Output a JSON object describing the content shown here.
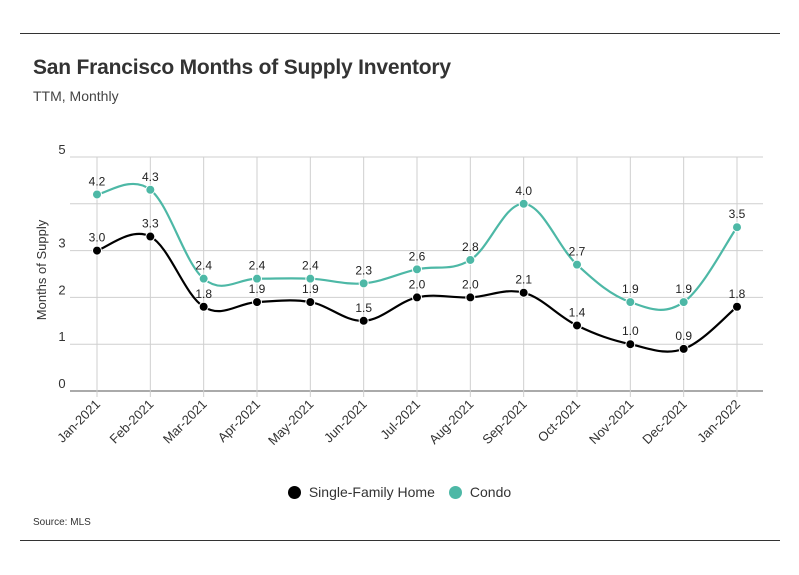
{
  "header": {
    "title": "San Francisco Months of Supply Inventory",
    "subtitle": "TTM, Monthly"
  },
  "footer": {
    "source": "Source:  MLS"
  },
  "chart_data": {
    "type": "line",
    "title": "San Francisco Months of Supply Inventory",
    "subtitle": "TTM, Monthly",
    "xlabel": "",
    "ylabel": "Months of Supply",
    "ylim": [
      0,
      5
    ],
    "yticks": [
      0,
      1,
      2,
      3,
      5
    ],
    "grid": true,
    "legend_position": "bottom-center",
    "categories": [
      "Jan-2021",
      "Feb-2021",
      "Mar-2021",
      "Apr-2021",
      "May-2021",
      "Jun-2021",
      "Jul-2021",
      "Aug-2021",
      "Sep-2021",
      "Oct-2021",
      "Nov-2021",
      "Dec-2021",
      "Jan-2022"
    ],
    "series": [
      {
        "name": "Single-Family Home",
        "color": "#000000",
        "values": [
          3.0,
          3.3,
          1.8,
          1.9,
          1.9,
          1.5,
          2.0,
          2.0,
          2.1,
          1.4,
          1.0,
          0.9,
          1.8
        ],
        "labels": [
          "3.0",
          "3.3",
          "1.8",
          "1.9",
          "1.9",
          "1.5",
          "2.0",
          "2.0",
          "2.1",
          "1.4",
          "1.0",
          "0.9",
          "1.8"
        ]
      },
      {
        "name": "Condo",
        "color": "#4db8a6",
        "values": [
          4.2,
          4.3,
          2.4,
          2.4,
          2.4,
          2.3,
          2.6,
          2.8,
          4.0,
          2.7,
          1.9,
          1.9,
          3.5
        ],
        "labels": [
          "4.2",
          "4.3",
          "2.4",
          "2.4",
          "2.4",
          "2.3",
          "2.6",
          "2.8",
          "4.0",
          "2.7",
          "1.9",
          "1.9",
          "3.5"
        ]
      }
    ]
  }
}
